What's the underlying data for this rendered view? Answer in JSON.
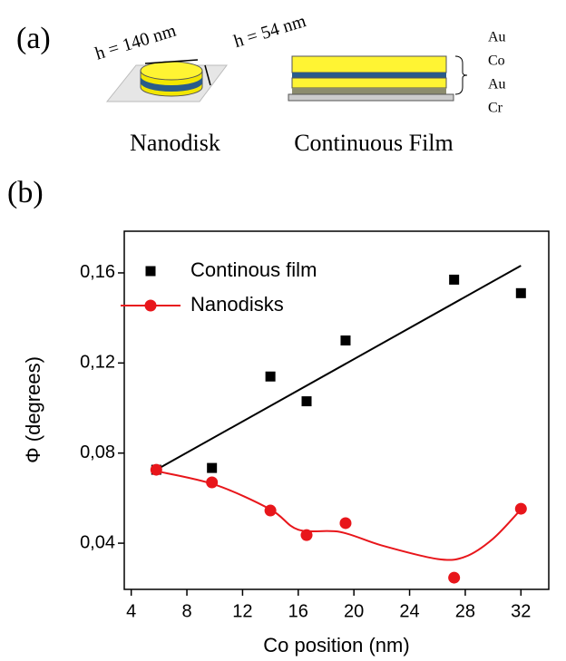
{
  "panel_a": {
    "label": "(a)",
    "disk_height": "h = 140 nm",
    "film_height": "h = 54 nm",
    "layers": [
      "Au",
      "Co",
      "Au",
      "Cr"
    ],
    "disk_caption": "Nanodisk",
    "film_caption": "Continuous Film"
  },
  "panel_b": {
    "label": "(b)"
  },
  "chart_data": {
    "type": "scatter",
    "xlabel": "Co position (nm)",
    "ylabel": "Φ (degrees)",
    "xlim": [
      3.5,
      34
    ],
    "ylim": [
      0.0195,
      0.1785
    ],
    "xticks": [
      4,
      8,
      12,
      16,
      20,
      24,
      28,
      32
    ],
    "yticks": [
      {
        "value": 0.04,
        "label": "0,04"
      },
      {
        "value": 0.08,
        "label": "0,08"
      },
      {
        "value": 0.12,
        "label": "0,12"
      },
      {
        "value": 0.16,
        "label": "0,16"
      }
    ],
    "series": [
      {
        "name": "Continous film",
        "color": "#000000",
        "marker": "square",
        "x": [
          5.8,
          9.8,
          14,
          16.6,
          19.4,
          27.2,
          32
        ],
        "values": [
          0.0726,
          0.0734,
          0.114,
          0.103,
          0.13,
          0.157,
          0.151
        ],
        "fit_x": [
          5.8,
          32
        ],
        "fit_values": [
          0.0726,
          0.1632
        ],
        "fit_smooth": false
      },
      {
        "name": "Nanodisks",
        "color": "#e8161b",
        "marker": "circle",
        "x": [
          5.8,
          9.8,
          14,
          16.6,
          19.4,
          27.2,
          32
        ],
        "values": [
          0.0726,
          0.067,
          0.0545,
          0.0436,
          0.0489,
          0.0247,
          0.0553
        ],
        "fit_x": [
          5.8,
          10,
          14,
          16,
          19,
          22,
          26,
          28,
          30,
          32
        ],
        "fit_values": [
          0.072,
          0.066,
          0.055,
          0.046,
          0.045,
          0.039,
          0.033,
          0.034,
          0.042,
          0.055
        ],
        "fit_smooth": true
      }
    ]
  }
}
